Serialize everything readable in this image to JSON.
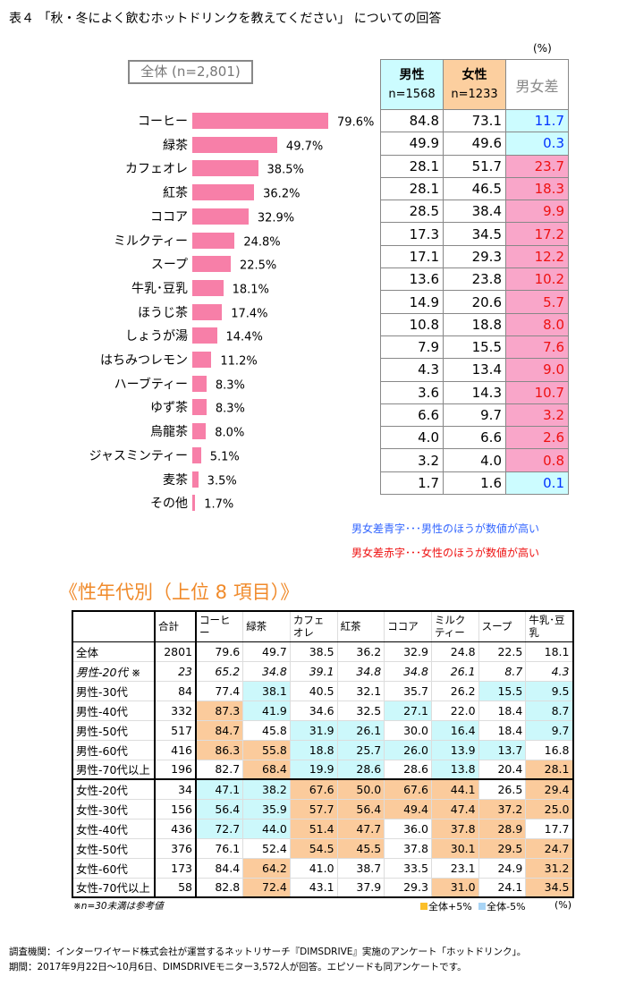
{
  "title": "表４ 「秋・冬によく飲むホットドリンクを教えてください」 についての回答",
  "unit": "(%)",
  "chart_data": {
    "type": "bar",
    "title": "全体 (n=2,801)",
    "categories": [
      "コーヒー",
      "緑茶",
      "カフェオレ",
      "紅茶",
      "ココア",
      "ミルクティー",
      "スープ",
      "牛乳･豆乳",
      "ほうじ茶",
      "しょうが湯",
      "はちみつレモン",
      "ハーブティー",
      "ゆず茶",
      "烏龍茶",
      "ジャスミンティー",
      "麦茶",
      "その他"
    ],
    "values": [
      79.6,
      49.7,
      38.5,
      36.2,
      32.9,
      24.8,
      22.5,
      18.1,
      17.4,
      14.4,
      11.2,
      8.3,
      8.3,
      8.0,
      5.1,
      3.5,
      1.7
    ],
    "value_labels": [
      "79.6%",
      "49.7%",
      "38.5%",
      "36.2%",
      "32.9%",
      "24.8%",
      "22.5%",
      "18.1%",
      "17.4%",
      "14.4%",
      "11.2%",
      "8.3%",
      "8.3%",
      "8.0%",
      "5.1%",
      "3.5%",
      "1.7%"
    ],
    "bar_color": "#f77fa8"
  },
  "gender_table": {
    "male_label": "男性",
    "male_n": "n=1568",
    "female_label": "女性",
    "female_n": "n=1233",
    "diff_label": "男女差",
    "male": [
      "84.8",
      "49.9",
      "28.1",
      "28.1",
      "28.5",
      "17.3",
      "17.1",
      "13.6",
      "14.9",
      "10.8",
      "7.9",
      "4.3",
      "3.6",
      "6.6",
      "4.0",
      "3.2",
      "1.7"
    ],
    "female": [
      "73.1",
      "49.6",
      "51.7",
      "46.5",
      "38.4",
      "34.5",
      "29.3",
      "23.8",
      "20.6",
      "18.8",
      "15.5",
      "13.4",
      "14.3",
      "9.7",
      "6.6",
      "4.0",
      "1.6"
    ],
    "diff": [
      "11.7",
      "0.3",
      "23.7",
      "18.3",
      "9.9",
      "17.2",
      "12.2",
      "10.2",
      "5.7",
      "8.0",
      "7.6",
      "9.0",
      "10.7",
      "3.2",
      "2.6",
      "0.8",
      "0.1"
    ],
    "colors": {
      "male_higher_text": "#0033ff",
      "female_higher_text": "#ee1111",
      "male_higher_bg": "#ccfcff",
      "female_higher_bg": "#f9a6c9"
    }
  },
  "notes": {
    "blue": "男女差青字･･･男性のほうが数値が高い",
    "red": "男女差赤字･･･女性のほうが数値が高い"
  },
  "age_section": {
    "title": "《性年代別（上位 8 項目）》",
    "headers": [
      "",
      "合計",
      "コーヒー",
      "緑茶",
      "カフェオレ",
      "紅茶",
      "ココア",
      "ミルクティー",
      "スープ",
      "牛乳･豆乳"
    ],
    "rows": [
      {
        "label": "全体",
        "n": "2801",
        "values": [
          "79.6",
          "49.7",
          "38.5",
          "36.2",
          "32.9",
          "24.8",
          "22.5",
          "18.1"
        ]
      },
      {
        "label": "男性-20代 ※",
        "n": "23",
        "values": [
          "65.2",
          "34.8",
          "39.1",
          "34.8",
          "34.8",
          "26.1",
          "8.7",
          "4.3"
        ],
        "reference": true
      },
      {
        "label": "男性-30代",
        "n": "84",
        "values": [
          "77.4",
          "38.1",
          "40.5",
          "32.1",
          "35.7",
          "26.2",
          "15.5",
          "9.5"
        ]
      },
      {
        "label": "男性-40代",
        "n": "332",
        "values": [
          "87.3",
          "41.9",
          "34.6",
          "32.5",
          "27.1",
          "22.0",
          "18.4",
          "8.7"
        ]
      },
      {
        "label": "男性-50代",
        "n": "517",
        "values": [
          "84.7",
          "45.8",
          "31.9",
          "26.1",
          "30.0",
          "16.4",
          "18.4",
          "9.7"
        ]
      },
      {
        "label": "男性-60代",
        "n": "416",
        "values": [
          "86.3",
          "55.8",
          "18.8",
          "25.7",
          "26.0",
          "13.9",
          "13.7",
          "16.8"
        ]
      },
      {
        "label": "男性-70代以上",
        "n": "196",
        "values": [
          "82.7",
          "68.4",
          "19.9",
          "28.6",
          "28.6",
          "13.8",
          "20.4",
          "28.1"
        ]
      },
      {
        "label": "女性-20代",
        "n": "34",
        "values": [
          "47.1",
          "38.2",
          "67.6",
          "50.0",
          "67.6",
          "44.1",
          "26.5",
          "29.4"
        ]
      },
      {
        "label": "女性-30代",
        "n": "156",
        "values": [
          "56.4",
          "35.9",
          "57.7",
          "56.4",
          "49.4",
          "47.4",
          "37.2",
          "25.0"
        ]
      },
      {
        "label": "女性-40代",
        "n": "436",
        "values": [
          "72.7",
          "44.0",
          "51.4",
          "47.7",
          "36.0",
          "37.8",
          "28.9",
          "17.7"
        ]
      },
      {
        "label": "女性-50代",
        "n": "376",
        "values": [
          "76.1",
          "52.4",
          "54.5",
          "45.5",
          "37.8",
          "30.1",
          "29.5",
          "24.7"
        ]
      },
      {
        "label": "女性-60代",
        "n": "173",
        "values": [
          "84.4",
          "64.2",
          "41.0",
          "38.7",
          "33.5",
          "23.1",
          "24.9",
          "31.2"
        ]
      },
      {
        "label": "女性-70代以上",
        "n": "58",
        "values": [
          "82.8",
          "72.4",
          "43.1",
          "37.9",
          "29.3",
          "31.0",
          "24.1",
          "34.5"
        ]
      }
    ],
    "threshold": 5,
    "reference_note": "※n=30未満は参考値",
    "legend_up": "全体+5%",
    "legend_down": "全体-5%",
    "legend_up_color": "#fbbf2a",
    "legend_down_color": "#a8d4f5",
    "unit": "(%)"
  },
  "footer": {
    "line1": "調査機関：インターワイヤード株式会社が運営するネットリサーチ『DIMSDRIVE』実施のアンケート「ホットドリンク」。",
    "line2": "期間：2017年9月22日～10月6日、DIMSDRIVEモニター3,572人が回答。エピソードも同アンケートです。"
  }
}
